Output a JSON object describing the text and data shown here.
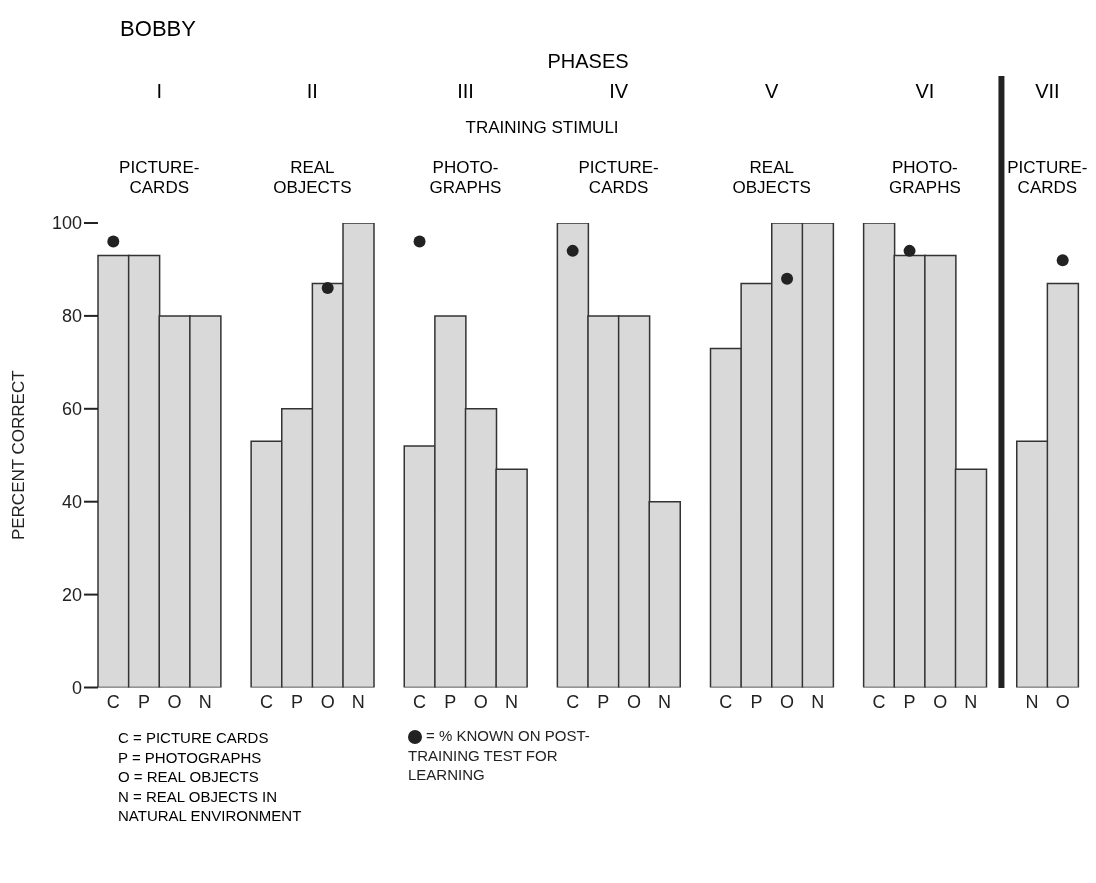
{
  "chart_data": {
    "type": "bar",
    "title": "BOBBY",
    "ylabel": "PERCENT CORRECT",
    "categories": [
      "C",
      "P",
      "O",
      "N",
      null,
      "C",
      "P",
      "O",
      "N",
      null,
      "C",
      "P",
      "O",
      "N",
      null,
      "C",
      "P",
      "O",
      "N",
      null,
      "C",
      "P",
      "O",
      "N",
      null,
      "C",
      "P",
      "O",
      "N",
      null,
      "N",
      "O"
    ],
    "series": [
      {
        "color": "#d9d9d9",
        "values": [
          93,
          93,
          80,
          80,
          null,
          53,
          60,
          87,
          100,
          null,
          52,
          80,
          60,
          47,
          null,
          100,
          80,
          80,
          40,
          null,
          73,
          87,
          100,
          100,
          null,
          100,
          93,
          93,
          47,
          null,
          53,
          87
        ]
      },
      {
        "type": "scatter",
        "name": "= % KNOWN ON POST-TRAINING TEST FOR LEARNING",
        "color": "#222222",
        "values": [
          96,
          null,
          null,
          null,
          null,
          null,
          null,
          86,
          null,
          null,
          96,
          null,
          null,
          null,
          null,
          94,
          null,
          null,
          null,
          null,
          null,
          null,
          88,
          null,
          null,
          null,
          94,
          null,
          null,
          null,
          null,
          92
        ]
      }
    ],
    "ref_lines": [
      {
        "axis": "x",
        "color": "#222222",
        "line_style": "solid"
      }
    ],
    "ylim": [
      0,
      100
    ],
    "yticks": [
      0,
      20,
      40,
      60,
      80,
      100
    ],
    "legend": "bottom",
    "marker": "circle",
    "annotations": [
      "PHASES",
      "I",
      "II",
      "III",
      "IV",
      "V",
      "VI",
      "VII",
      "TRAINING STIMULI",
      "PICTURE-\nCARDS",
      "REAL\nOBJECTS",
      "PHOTO-\nGRAPHS",
      "PICTURE-\nCARDS",
      "REAL\nOBJECTS",
      "PHOTO-\nGRAPHS",
      "PICTURE-\nCARDS",
      "C = PICTURE CARDS",
      "P = PHOTOGRAPHS",
      "O = REAL OBJECTS",
      "N = REAL OBJECTS IN\nNATURAL ENVIRONMENT"
    ]
  }
}
